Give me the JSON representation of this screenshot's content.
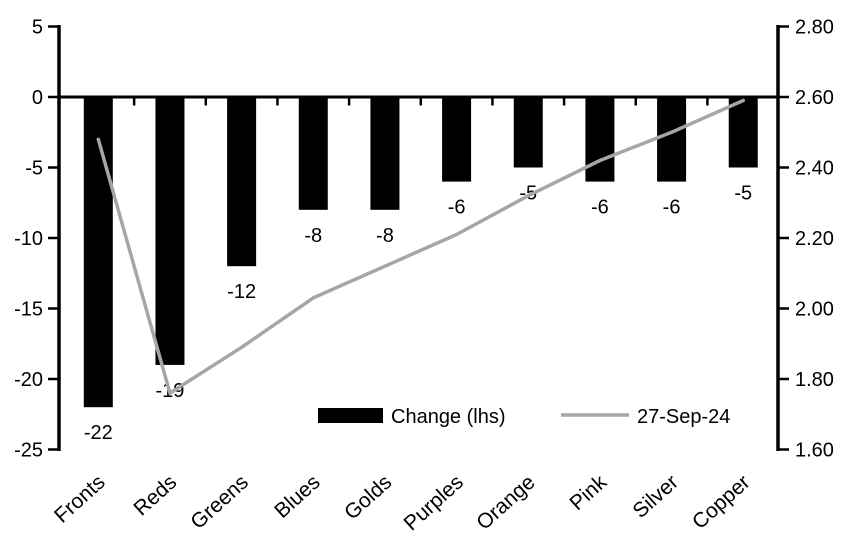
{
  "chart_data": {
    "type": "bar",
    "subtype": "bar+line combo, dual axis",
    "title": "",
    "xlabel": "",
    "ylabel": "",
    "grid": false,
    "background_color": "#ffffff",
    "categories": [
      "Fronts",
      "Reds",
      "Greens",
      "Blues",
      "Golds",
      "Purples",
      "Orange",
      "Pink",
      "Silver",
      "Copper"
    ],
    "series": [
      {
        "name": "Change (lhs)",
        "type": "bar",
        "axis": "left",
        "color": "#000000",
        "values": [
          -22,
          -19,
          -12,
          -8,
          -8,
          -6,
          -5,
          -6,
          -6,
          -5
        ],
        "data_labels": [
          "-22",
          "-19",
          "-12",
          "-8",
          "-8",
          "-6",
          "-5",
          "-6",
          "-6",
          "-5"
        ]
      },
      {
        "name": "27-Sep-24",
        "type": "line",
        "axis": "right",
        "color": "#a6a6a6",
        "values": [
          2.48,
          1.76,
          1.89,
          2.03,
          2.12,
          2.21,
          2.32,
          2.42,
          2.5,
          2.59
        ]
      }
    ],
    "left_axis": {
      "min": -25,
      "max": 5,
      "tick_labels": [
        "5",
        "0",
        "-5",
        "-10",
        "-15",
        "-20",
        "-25"
      ],
      "tick_values": [
        5,
        0,
        -5,
        -10,
        -15,
        -20,
        -25
      ]
    },
    "right_axis": {
      "min": 1.6,
      "max": 2.8,
      "tick_labels": [
        "2.80",
        "2.60",
        "2.40",
        "2.20",
        "2.00",
        "1.80",
        "1.60"
      ],
      "tick_values": [
        2.8,
        2.6,
        2.4,
        2.2,
        2.0,
        1.8,
        1.6
      ]
    },
    "legend": {
      "position": "inside-bottom",
      "items": [
        {
          "label": "Change (lhs)",
          "swatch": "black-bar"
        },
        {
          "label": "27-Sep-24",
          "swatch": "gray-line"
        }
      ]
    },
    "axis_color": "#000000",
    "text_color": "#000000"
  }
}
